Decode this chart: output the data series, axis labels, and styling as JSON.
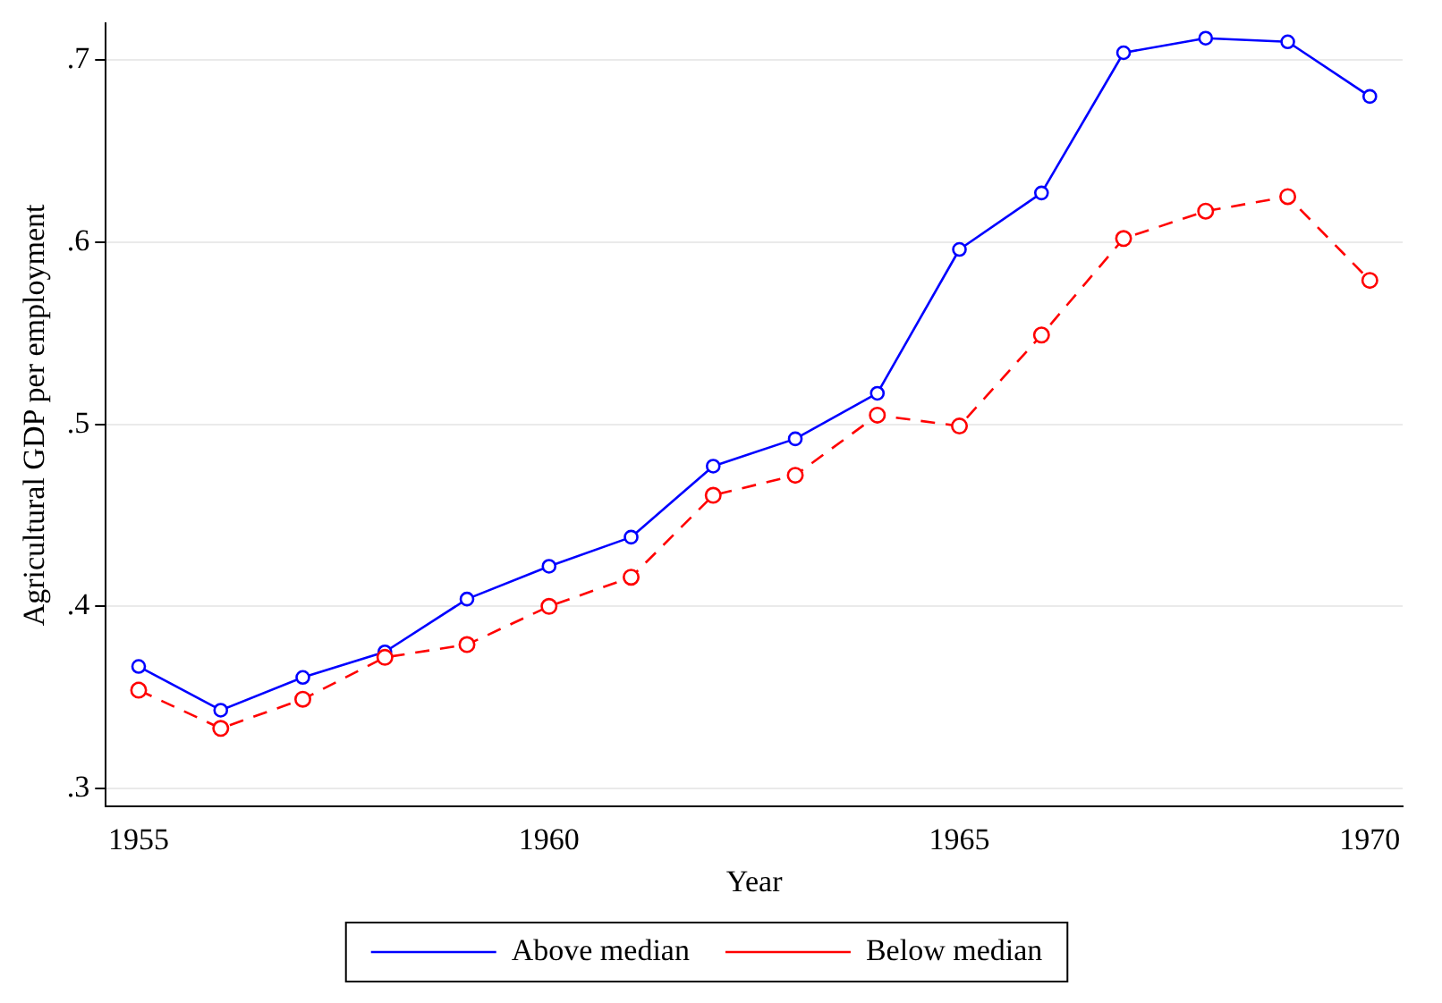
{
  "chart_data": {
    "type": "line",
    "xlabel": "Year",
    "ylabel": "Agricultural GDP per employment",
    "x": [
      1955,
      1956,
      1957,
      1958,
      1959,
      1960,
      1961,
      1962,
      1963,
      1964,
      1965,
      1966,
      1967,
      1968,
      1969,
      1970
    ],
    "series": [
      {
        "name": "Above median",
        "color": "#0000ff",
        "line_style": "solid",
        "values": [
          0.367,
          0.343,
          0.361,
          0.375,
          0.404,
          0.422,
          0.438,
          0.477,
          0.492,
          0.517,
          0.596,
          0.627,
          0.704,
          0.712,
          0.71,
          0.68
        ]
      },
      {
        "name": "Below median",
        "color": "#ff0000",
        "line_style": "dashed",
        "values": [
          0.354,
          0.333,
          0.349,
          0.372,
          0.379,
          0.4,
          0.416,
          0.461,
          0.472,
          0.505,
          0.499,
          0.549,
          0.602,
          0.617,
          0.625,
          0.579
        ]
      }
    ],
    "xlim": [
      1954.6,
      1970.4
    ],
    "xticks": [
      1955,
      1960,
      1965,
      1970
    ],
    "ylim": [
      0.29,
      0.72
    ],
    "yticks": [
      {
        "value": 0.3,
        "label": ".3"
      },
      {
        "value": 0.4,
        "label": ".4"
      },
      {
        "value": 0.5,
        "label": ".5"
      },
      {
        "value": 0.6,
        "label": ".6"
      },
      {
        "value": 0.7,
        "label": ".7"
      }
    ],
    "grid": "y",
    "legend": "bottom",
    "marker": "circle"
  }
}
